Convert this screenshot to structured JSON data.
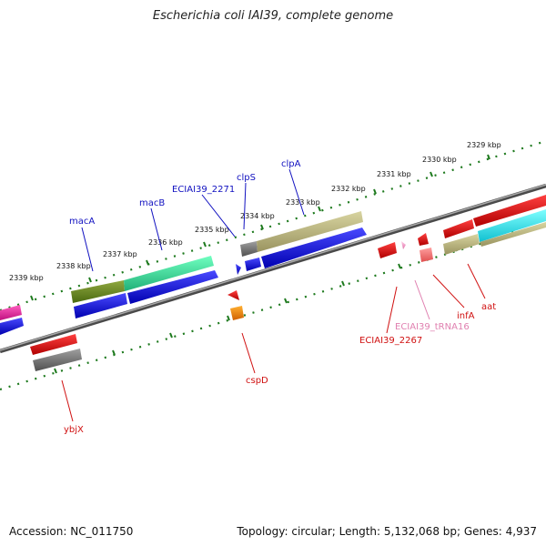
{
  "title": "Escherichia coli IAI39, complete genome",
  "footer": {
    "accession": "Accession: NC_011750",
    "summary": "Topology: circular; Length: 5,132,068 bp; Genes: 4,937"
  },
  "colors": {
    "backbone": "#808080",
    "ruler": "#1e7a1e",
    "forward_label": "#1010c0",
    "reverse_label": "#d01010",
    "trna_label": "#e080b0"
  },
  "kbp_labels": [
    "2339 kbp",
    "2338 kbp",
    "2337 kbp",
    "2336 kbp",
    "2335 kbp",
    "2334 kbp",
    "2333 kbp",
    "2332 kbp",
    "2331 kbp",
    "2330 kbp",
    "2329 kbp"
  ],
  "gene_labels": {
    "macA": "macA",
    "macB": "macB",
    "ECIAI39_2271": "ECIAI39_2271",
    "clpS": "clpS",
    "clpA": "clpA",
    "cspD": "cspD",
    "ybjX": "ybjX",
    "ECIAI39_2267": "ECIAI39_2267",
    "ECIAI39_tRNA16": "ECIAI39_tRNA16",
    "infA": "infA",
    "aat": "aat"
  }
}
